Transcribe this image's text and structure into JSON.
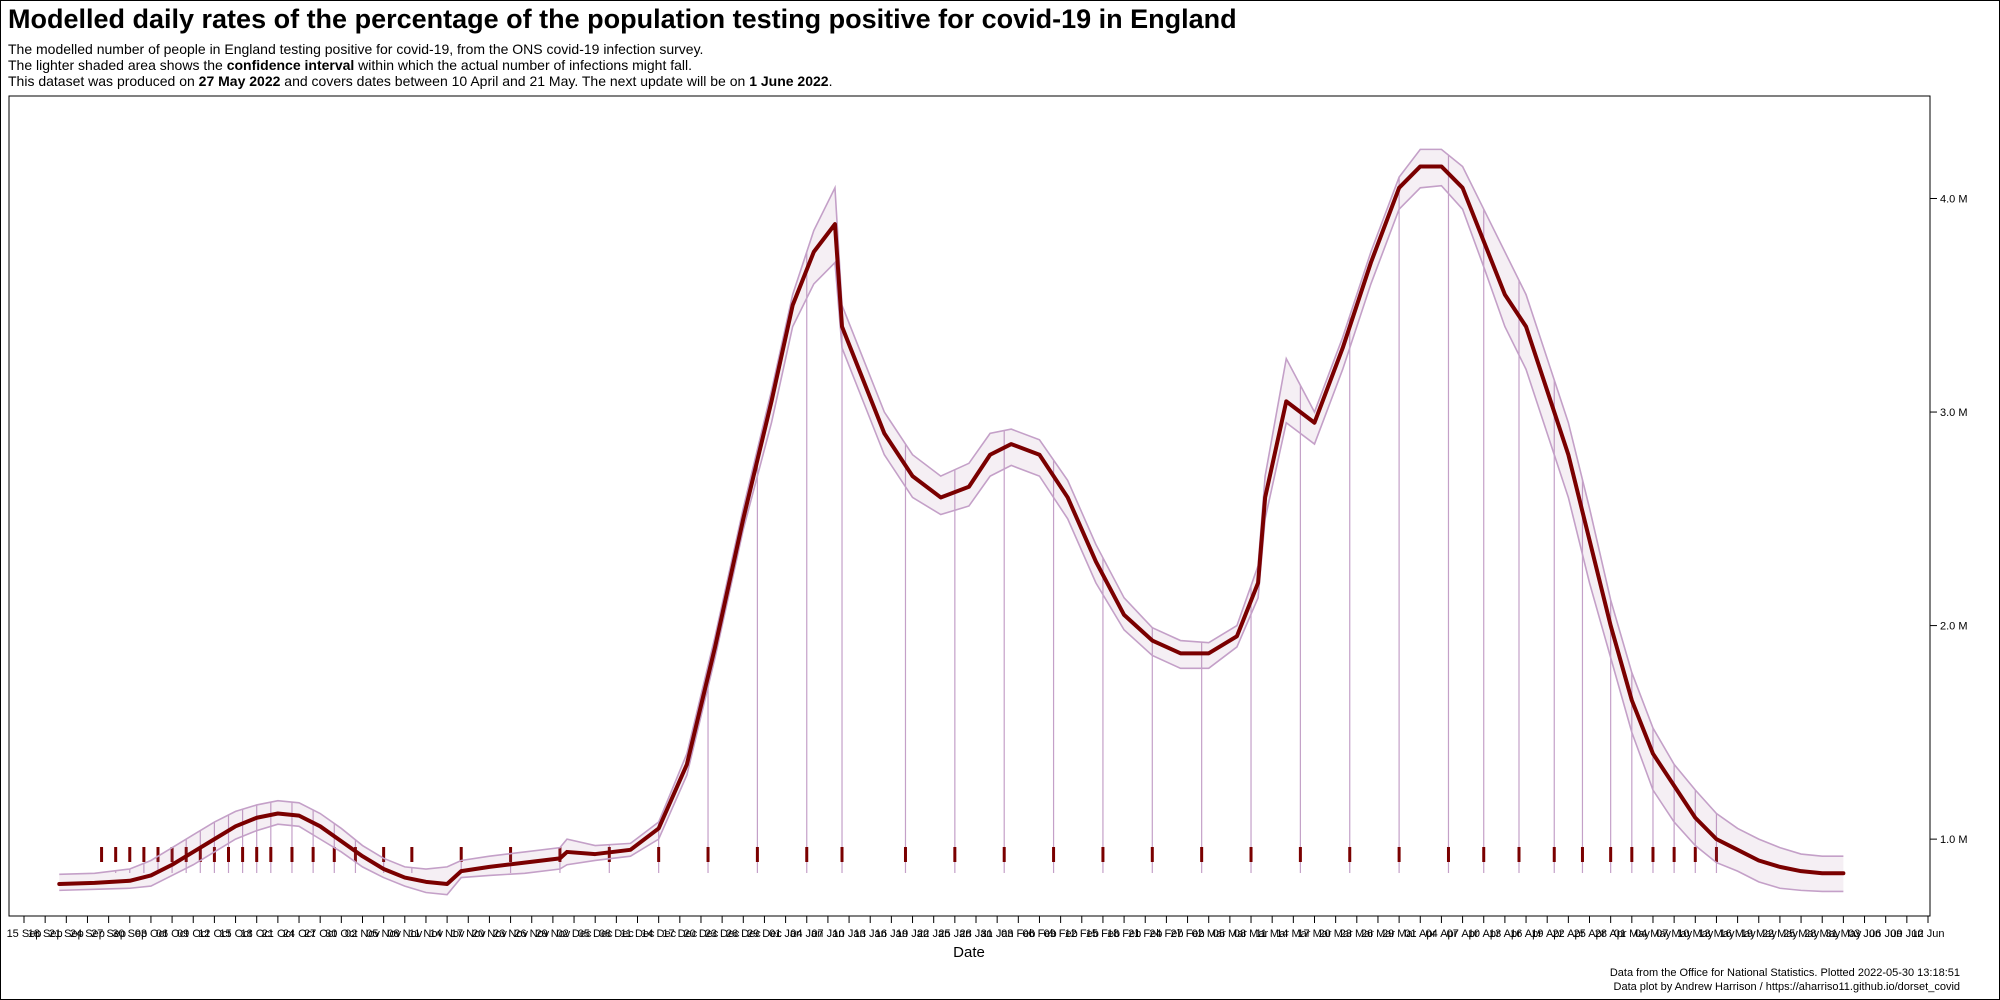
{
  "chart_data": {
    "type": "line",
    "title": "Modelled daily rates of the percentage of the population testing positive for covid-19 in England",
    "subtitle": {
      "line1": "The modelled number of people in England testing positive for covid-19, from the ONS covid-19 infection survey.",
      "line2_pre": "The lighter shaded area shows the ",
      "line2_bold": "confidence interval",
      "line2_post": " within which the actual number of infections might fall.",
      "line3_pre": "This dataset was produced on ",
      "line3_bold1": "27 May 2022",
      "line3_mid": " and covers dates between 10 April and 21 May. The next update will be on ",
      "line3_bold2": "1 June 2022",
      "line3_post": "."
    },
    "xlabel": "Date",
    "ylabel": "",
    "ylim": [
      640000,
      4480000
    ],
    "y_ticks": [
      1000000,
      2000000,
      3000000,
      4000000
    ],
    "y_tick_labels": [
      "1.0 M",
      "2.0 M",
      "3.0 M",
      "4.0 M"
    ],
    "x_range": [
      "2021-09-15",
      "2022-06-12"
    ],
    "x_tick_labels": [
      "15 Sep",
      "18 Sep",
      "21 Sep",
      "24 Sep",
      "27 Sep",
      "30 Sep",
      "03 Oct",
      "06 Oct",
      "09 Oct",
      "12 Oct",
      "15 Oct",
      "18 Oct",
      "21 Oct",
      "24 Oct",
      "27 Oct",
      "30 Oct",
      "02 Nov",
      "05 Nov",
      "08 Nov",
      "11 Nov",
      "14 Nov",
      "17 Nov",
      "20 Nov",
      "23 Nov",
      "26 Nov",
      "29 Nov",
      "02 Dec",
      "05 Dec",
      "08 Dec",
      "11 Dec",
      "14 Dec",
      "17 Dec",
      "20 Dec",
      "23 Dec",
      "26 Dec",
      "29 Dec",
      "01 Jan",
      "04 Jan",
      "07 Jan",
      "10 Jan",
      "13 Jan",
      "16 Jan",
      "19 Jan",
      "22 Jan",
      "25 Jan",
      "28 Jan",
      "31 Jan",
      "03 Feb",
      "06 Feb",
      "09 Feb",
      "12 Feb",
      "15 Feb",
      "18 Feb",
      "21 Feb",
      "24 Feb",
      "27 Feb",
      "02 Mar",
      "05 Mar",
      "08 Mar",
      "11 Mar",
      "14 Mar",
      "17 Mar",
      "20 Mar",
      "23 Mar",
      "26 Mar",
      "29 Mar",
      "01 Apr",
      "04 Apr",
      "07 Apr",
      "10 Apr",
      "13 Apr",
      "16 Apr",
      "19 Apr",
      "22 Apr",
      "25 Apr",
      "28 Apr",
      "01 May",
      "04 May",
      "07 May",
      "10 May",
      "13 May",
      "16 May",
      "19 May",
      "22 May",
      "25 May",
      "28 May",
      "31 May",
      "03 Jun",
      "06 Jun",
      "09 Jun",
      "12 Jun"
    ],
    "grid": false,
    "legend": "none",
    "colors": {
      "estimate": "#7a0000",
      "ci_line": "#c4a0c8",
      "ci_fill": "#a97aa3"
    },
    "series": [
      {
        "x": [
          "2021-09-20",
          "2021-09-25",
          "2021-09-30",
          "2021-10-03",
          "2021-10-06",
          "2021-10-09",
          "2021-10-12",
          "2021-10-15",
          "2021-10-18",
          "2021-10-21",
          "2021-10-24",
          "2021-10-27",
          "2021-10-30",
          "2021-11-02",
          "2021-11-05",
          "2021-11-08",
          "2021-11-11",
          "2021-11-14",
          "2021-11-16",
          "2021-11-20",
          "2021-11-25",
          "2021-11-30",
          "2021-12-01",
          "2021-12-05",
          "2021-12-10",
          "2021-12-14",
          "2021-12-18",
          "2021-12-22",
          "2021-12-26",
          "2021-12-30",
          "2022-01-02",
          "2022-01-05",
          "2022-01-08",
          "2022-01-09",
          "2022-01-12",
          "2022-01-15",
          "2022-01-19",
          "2022-01-23",
          "2022-01-27",
          "2022-01-30",
          "2022-02-02",
          "2022-02-06",
          "2022-02-10",
          "2022-02-14",
          "2022-02-18",
          "2022-02-22",
          "2022-02-26",
          "2022-03-02",
          "2022-03-06",
          "2022-03-09",
          "2022-03-10",
          "2022-03-13",
          "2022-03-17",
          "2022-03-21",
          "2022-03-25",
          "2022-03-29",
          "2022-04-01",
          "2022-04-04",
          "2022-04-07",
          "2022-04-10",
          "2022-04-13",
          "2022-04-16",
          "2022-04-19",
          "2022-04-22",
          "2022-04-25",
          "2022-04-28",
          "2022-05-01",
          "2022-05-04",
          "2022-05-07",
          "2022-05-10",
          "2022-05-13",
          "2022-05-16",
          "2022-05-19",
          "2022-05-22",
          "2022-05-25",
          "2022-05-28",
          "2022-05-31"
        ],
        "y": [
          790000,
          795000,
          805000,
          830000,
          880000,
          940000,
          1000000,
          1060000,
          1100000,
          1120000,
          1110000,
          1060000,
          990000,
          920000,
          860000,
          820000,
          800000,
          790000,
          850000,
          870000,
          890000,
          910000,
          940000,
          930000,
          950000,
          1050000,
          1350000,
          1900000,
          2500000,
          3050000,
          3500000,
          3750000,
          3880000,
          3400000,
          3150000,
          2900000,
          2700000,
          2600000,
          2650000,
          2800000,
          2850000,
          2800000,
          2600000,
          2300000,
          2050000,
          1930000,
          1870000,
          1870000,
          1950000,
          2200000,
          2600000,
          3050000,
          2950000,
          3300000,
          3700000,
          4050000,
          4150000,
          4150000,
          4050000,
          3800000,
          3550000,
          3400000,
          3100000,
          2800000,
          2400000,
          2000000,
          1650000,
          1400000,
          1250000,
          1100000,
          1000000,
          950000,
          900000,
          870000,
          850000,
          840000,
          840000
        ]
      }
    ],
    "ci_upper": [
      835000,
      840000,
      860000,
      900000,
      960000,
      1020000,
      1080000,
      1130000,
      1160000,
      1180000,
      1170000,
      1120000,
      1050000,
      970000,
      910000,
      870000,
      860000,
      870000,
      900000,
      920000,
      940000,
      960000,
      1000000,
      970000,
      980000,
      1080000,
      1400000,
      1950000,
      2550000,
      3100000,
      3550000,
      3850000,
      4050000,
      3500000,
      3250000,
      3000000,
      2800000,
      2700000,
      2760000,
      2900000,
      2920000,
      2870000,
      2680000,
      2380000,
      2130000,
      1990000,
      1930000,
      1920000,
      2000000,
      2280000,
      2700000,
      3250000,
      3000000,
      3350000,
      3750000,
      4100000,
      4230000,
      4230000,
      4150000,
      3950000,
      3750000,
      3550000,
      3250000,
      2950000,
      2550000,
      2120000,
      1780000,
      1520000,
      1350000,
      1230000,
      1120000,
      1050000,
      1000000,
      960000,
      930000,
      920000,
      920000
    ],
    "ci_lower": [
      760000,
      765000,
      770000,
      780000,
      830000,
      880000,
      940000,
      1000000,
      1040000,
      1070000,
      1060000,
      1000000,
      940000,
      870000,
      820000,
      780000,
      750000,
      740000,
      820000,
      830000,
      840000,
      860000,
      880000,
      900000,
      920000,
      1000000,
      1300000,
      1850000,
      2450000,
      2950000,
      3400000,
      3600000,
      3700000,
      3300000,
      3050000,
      2800000,
      2600000,
      2520000,
      2560000,
      2700000,
      2750000,
      2700000,
      2500000,
      2200000,
      1980000,
      1860000,
      1800000,
      1800000,
      1900000,
      2130000,
      2500000,
      2950000,
      2850000,
      3200000,
      3600000,
      3950000,
      4050000,
      4060000,
      3950000,
      3680000,
      3400000,
      3200000,
      2900000,
      2600000,
      2200000,
      1850000,
      1500000,
      1230000,
      1080000,
      970000,
      890000,
      850000,
      800000,
      770000,
      760000,
      755000,
      755000
    ],
    "sample_dates": [
      "2021-09-26",
      "2021-09-28",
      "2021-09-30",
      "2021-10-02",
      "2021-10-04",
      "2021-10-06",
      "2021-10-08",
      "2021-10-10",
      "2021-10-12",
      "2021-10-14",
      "2021-10-16",
      "2021-10-18",
      "2021-10-20",
      "2021-10-23",
      "2021-10-26",
      "2021-10-29",
      "2021-11-01",
      "2021-11-05",
      "2021-11-09",
      "2021-11-16",
      "2021-11-23",
      "2021-11-30",
      "2021-12-07",
      "2021-12-14",
      "2021-12-21",
      "2021-12-28",
      "2022-01-04",
      "2022-01-09",
      "2022-01-18",
      "2022-01-25",
      "2022-02-01",
      "2022-02-08",
      "2022-02-15",
      "2022-02-22",
      "2022-03-01",
      "2022-03-08",
      "2022-03-15",
      "2022-03-22",
      "2022-03-29",
      "2022-04-05",
      "2022-04-10",
      "2022-04-15",
      "2022-04-20",
      "2022-04-24",
      "2022-04-28",
      "2022-05-01",
      "2022-05-04",
      "2022-05-07",
      "2022-05-10",
      "2022-05-13"
    ]
  },
  "footer": {
    "line1": "Data from the Office for National Statistics. Plotted 2022-05-30 13:18:51",
    "line2": "Data plot by Andrew Harrison / https://aharriso11.github.io/dorset_covid"
  }
}
